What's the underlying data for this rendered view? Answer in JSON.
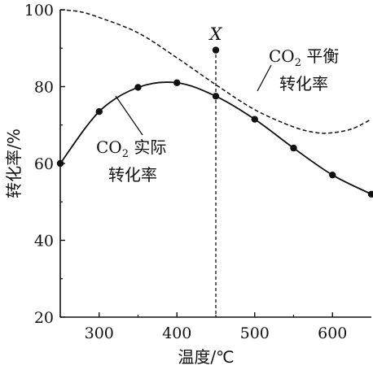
{
  "chart_data": {
    "type": "line",
    "xlabel": "温度/℃",
    "ylabel": "转化率/%",
    "xlim": [
      250,
      650
    ],
    "ylim": [
      20,
      100
    ],
    "x_ticks": [
      300,
      400,
      500,
      600
    ],
    "y_ticks": [
      20,
      40,
      60,
      80,
      100
    ],
    "grid": false,
    "series": [
      {
        "name": "CO₂ 实际转化率",
        "style": "solid",
        "x": [
          250,
          300,
          350,
          400,
          450,
          500,
          550,
          600,
          650
        ],
        "y": [
          60,
          73.5,
          79.8,
          81,
          77.5,
          71.5,
          64,
          57,
          52
        ]
      },
      {
        "name": "CO₂ 平衡转化率",
        "style": "dashed",
        "x": [
          250,
          275,
          300,
          350,
          400,
          450,
          500,
          550,
          580,
          600,
          625,
          650
        ],
        "y": [
          100,
          99.5,
          98,
          94,
          87.5,
          80.5,
          74,
          69.5,
          68,
          68,
          69,
          71.5
        ]
      }
    ],
    "annotations": {
      "point_x": {
        "label": "X",
        "x": 450,
        "y": 89.5
      },
      "vline_x": 450,
      "actual_label_line1": "CO",
      "actual_label_sub": "2",
      "actual_label_suffix": " 实际",
      "actual_label_line2": "转化率",
      "eq_label_line1": "CO",
      "eq_label_sub": "2",
      "eq_label_suffix": " 平衡",
      "eq_label_line2": "转化率"
    }
  }
}
